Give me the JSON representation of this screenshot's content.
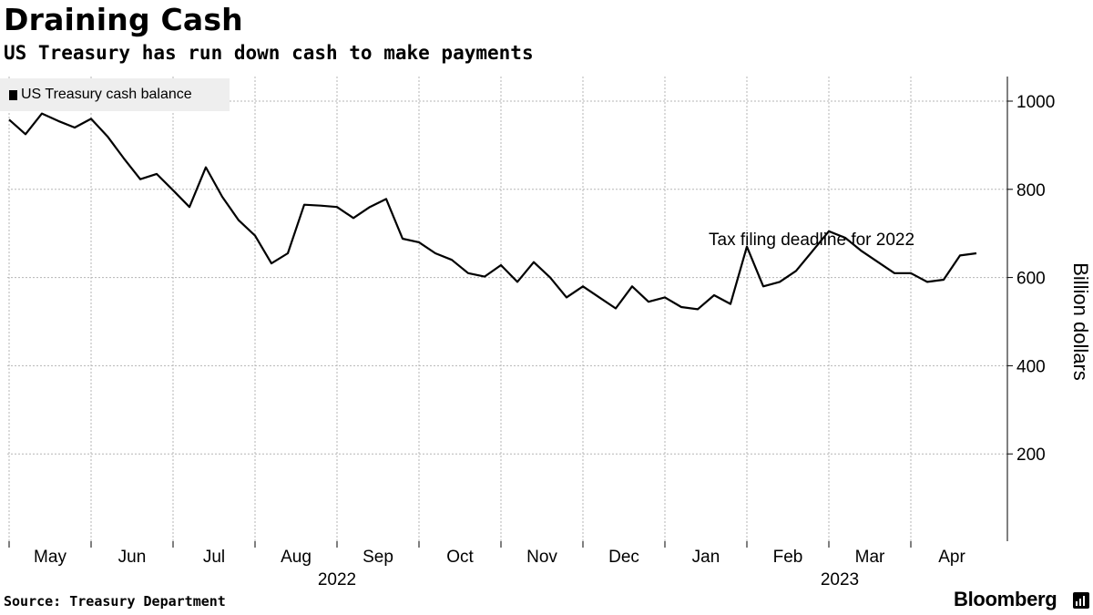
{
  "chart_data": {
    "type": "line",
    "title": "Draining Cash",
    "subtitle": "US Treasury has run down cash to make payments",
    "ylabel": "Billion dollars",
    "ylim": [
      0,
      1050
    ],
    "yticks": [
      200,
      400,
      600,
      800,
      1000
    ],
    "grid": true,
    "legend": "top-left",
    "annotation": "Tax filing deadline for 2022",
    "months": [
      "May",
      "Jun",
      "Jul",
      "Aug",
      "Sep",
      "Oct",
      "Nov",
      "Dec",
      "Jan",
      "Feb",
      "Mar",
      "Apr"
    ],
    "years": [
      "2022",
      "2023"
    ],
    "series": [
      {
        "name": "US Treasury cash balance",
        "color": "#000000",
        "x": [
          0.0,
          0.2,
          0.4,
          0.6,
          0.8,
          1.0,
          1.2,
          1.4,
          1.6,
          1.8,
          2.0,
          2.2,
          2.4,
          2.6,
          2.8,
          3.0,
          3.2,
          3.4,
          3.6,
          3.8,
          4.0,
          4.2,
          4.4,
          4.6,
          4.8,
          5.0,
          5.2,
          5.4,
          5.6,
          5.8,
          6.0,
          6.2,
          6.4,
          6.6,
          6.8,
          7.0,
          7.2,
          7.4,
          7.6,
          7.8,
          8.0,
          8.2,
          8.4,
          8.6,
          8.8,
          9.0,
          9.2,
          9.4,
          9.6,
          9.8,
          10.0,
          10.2,
          10.4,
          10.6,
          10.8,
          11.0,
          11.2,
          11.4,
          11.6,
          11.8
        ],
        "values": [
          958,
          925,
          972,
          955,
          940,
          960,
          920,
          870,
          823,
          835,
          798,
          760,
          850,
          783,
          730,
          695,
          632,
          655,
          765,
          763,
          760,
          735,
          760,
          778,
          688,
          680,
          655,
          640,
          610,
          602,
          628,
          590,
          635,
          600,
          555,
          580,
          555,
          530,
          580,
          545,
          555,
          533,
          528,
          560,
          540,
          670,
          580,
          590,
          615,
          660,
          705,
          690,
          660,
          635,
          610,
          610,
          590,
          595,
          650,
          655
        ]
      }
    ]
  }
}
